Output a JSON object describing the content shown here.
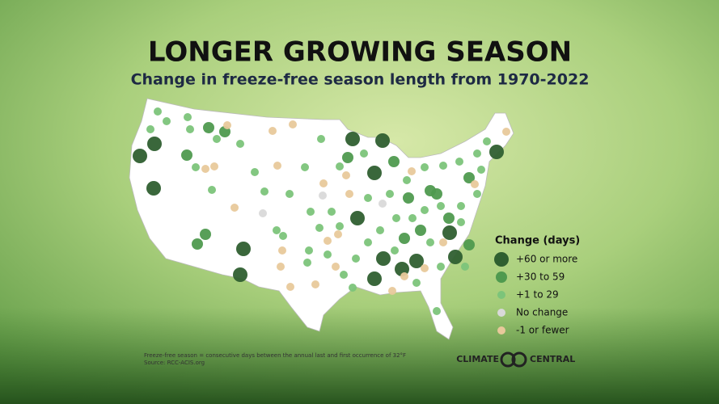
{
  "title": "LONGER GROWING SEASON",
  "subtitle": "Change in freeze-free season length from 1970-2022",
  "legend": {
    "title": "Change (days)",
    "items": [
      {
        "label": "+60 or more",
        "color": "#2f5f30"
      },
      {
        "label": "+30 to 59",
        "color": "#4f9a4f"
      },
      {
        "label": "+1 to 29",
        "color": "#7cc47a"
      },
      {
        "label": "No change",
        "color": "#d9d9d9"
      },
      {
        "label": "-1 or fewer",
        "color": "#e8c99b"
      }
    ]
  },
  "footnote": [
    "Freeze-free season = consecutive days between the annual last and first occurrence of 32°F",
    "Source: RCC-ACIS.org"
  ],
  "logo": {
    "left": "CLIMATE",
    "right": "CENTRAL"
  }
}
